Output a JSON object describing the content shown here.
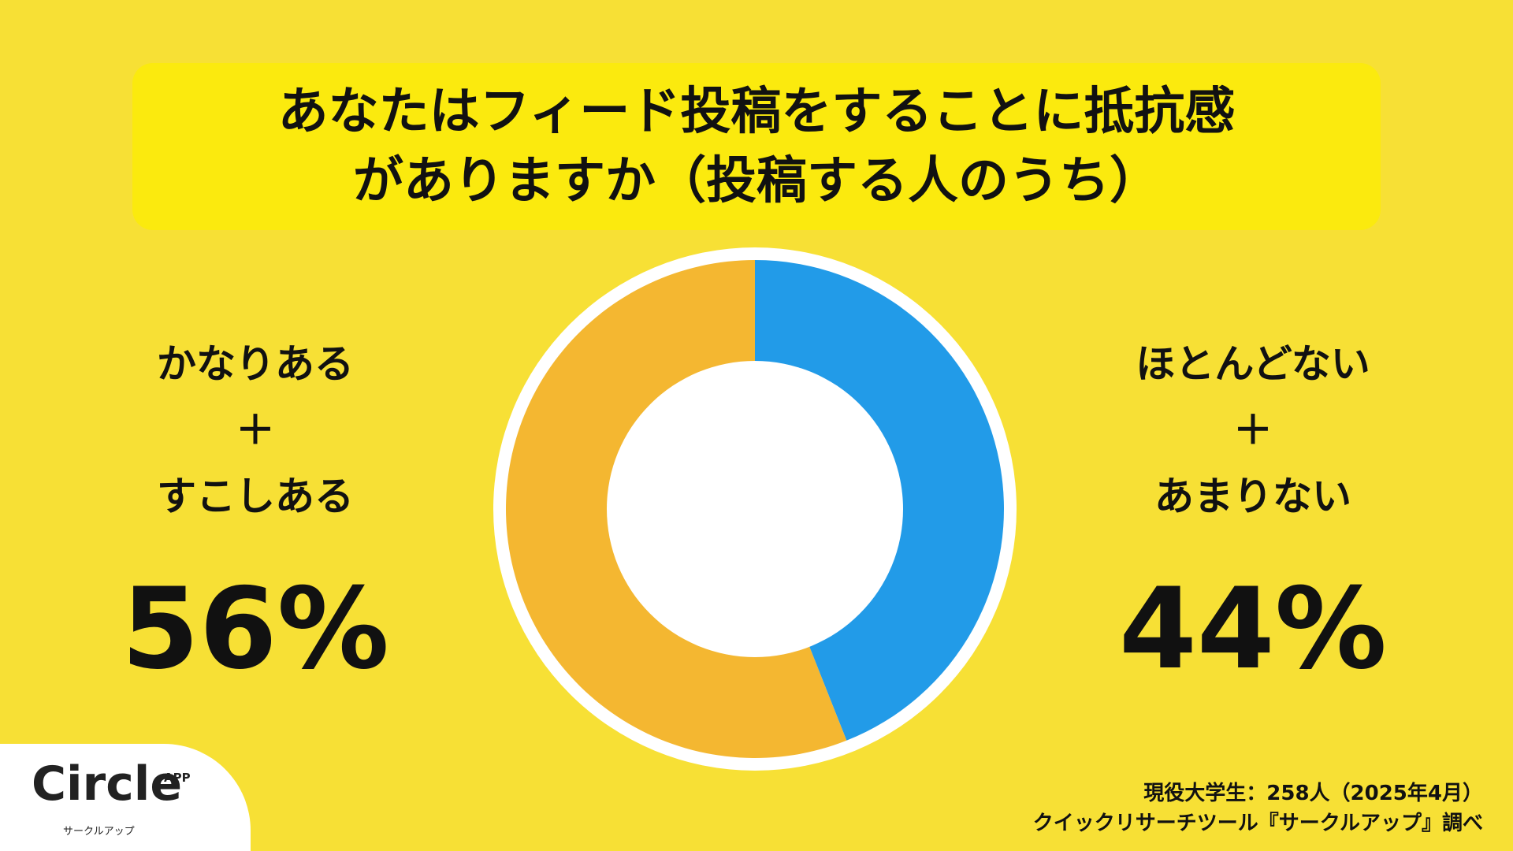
{
  "title": {
    "line1": "あなたはフィード投稿をすることに抵抗感",
    "line2": "がありますか（投稿する人のうち）"
  },
  "left_label": {
    "line1": "かなりある",
    "plus": "＋",
    "line2": "すこしある",
    "percent": "56%"
  },
  "right_label": {
    "line1": "ほとんどない",
    "plus": "＋",
    "line2": "あまりない",
    "percent": "44%"
  },
  "chart_data": {
    "type": "pie",
    "title": "あなたはフィード投稿をすることに抵抗感がありますか（投稿する人のうち）",
    "categories": [
      "かなりある＋すこしある",
      "ほとんどない＋あまりない"
    ],
    "values": [
      56,
      44
    ],
    "colors": [
      "#F4B731",
      "#229BE8"
    ],
    "center_color": "#FFFFFF",
    "ring_color": "#FFFFFF"
  },
  "logo": {
    "word": "Circle",
    "app": "APP",
    "sub": "サークルアップ"
  },
  "source": {
    "line1": "現役大学生：258人（2025年4月）",
    "line2": "クイックリサーチツール『サークルアップ』調べ"
  }
}
